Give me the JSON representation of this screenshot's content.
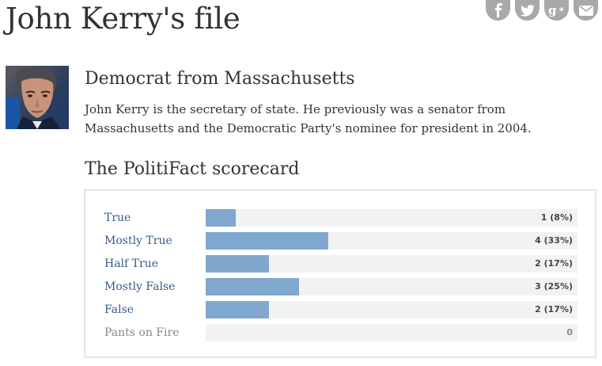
{
  "header": {
    "title": "John Kerry's file"
  },
  "share": [
    {
      "name": "facebook-icon",
      "glyph": "f"
    },
    {
      "name": "twitter-icon",
      "glyph": ""
    },
    {
      "name": "google-plus-icon",
      "glyph": "g+"
    },
    {
      "name": "email-icon",
      "glyph": ""
    }
  ],
  "profile": {
    "subtitle": "Democrat from Massachusetts",
    "bio": "John Kerry is the secretary of state. He previously was a senator from Massachusetts and the Democratic Party's nominee for president in 2004."
  },
  "scorecard": {
    "heading": "The PolitiFact scorecard",
    "bar_color": "#80a8cf",
    "rows": [
      {
        "label": "True",
        "count": "1 (8%)",
        "percent": 8
      },
      {
        "label": "Mostly True",
        "count": "4 (33%)",
        "percent": 33
      },
      {
        "label": "Half True",
        "count": "2 (17%)",
        "percent": 17
      },
      {
        "label": "Mostly False",
        "count": "3 (25%)",
        "percent": 25
      },
      {
        "label": "False",
        "count": "2 (17%)",
        "percent": 17
      },
      {
        "label": "Pants on Fire",
        "count": "0",
        "percent": 0
      }
    ]
  }
}
